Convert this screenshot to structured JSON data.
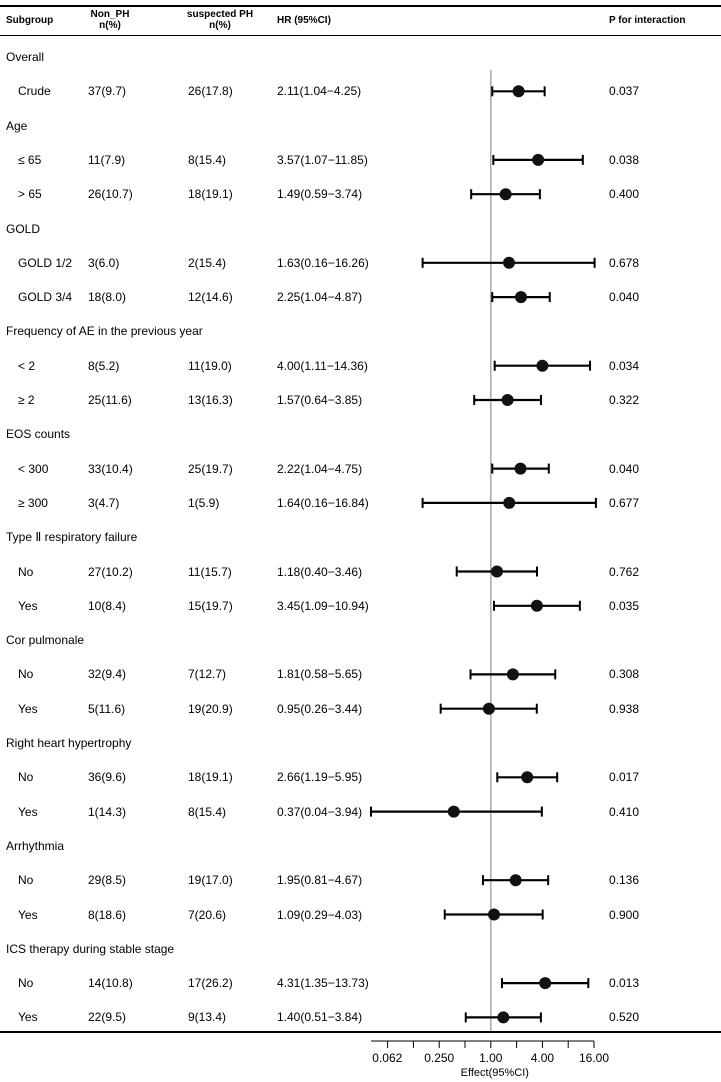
{
  "columns": {
    "subgroup": "Subgroup",
    "non_ph": [
      "Non_PH",
      "n(%)"
    ],
    "suspected_ph": [
      "suspected PH",
      "n(%)"
    ],
    "hr": "HR (95%CI)",
    "p": "P for interaction"
  },
  "chart_data": {
    "type": "forest",
    "x_scale": "log2",
    "xlabel": "Effect(95%CI)",
    "xlim": [
      0.04,
      16.0
    ],
    "xticks": [
      0.062,
      0.25,
      1.0,
      4.0,
      16.0
    ],
    "xtick_labels": [
      "0.062",
      "0.250",
      "1.00",
      "4.00",
      "16.00"
    ],
    "reference_line": 1.0,
    "rows": [
      {
        "label": "Overall",
        "header": true
      },
      {
        "label": "Crude",
        "non_ph": "37(9.7)",
        "sph": "26(17.8)",
        "hr_text": "2.11(1.04−4.25)",
        "hr": 2.11,
        "lo": 1.04,
        "hi": 4.25,
        "p": "0.037"
      },
      {
        "label": "Age",
        "header": true
      },
      {
        "label": "≤ 65",
        "non_ph": "11(7.9)",
        "sph": "8(15.4)",
        "hr_text": "3.57(1.07−11.85)",
        "hr": 3.57,
        "lo": 1.07,
        "hi": 11.85,
        "p": "0.038"
      },
      {
        "label": "> 65",
        "non_ph": "26(10.7)",
        "sph": "18(19.1)",
        "hr_text": "1.49(0.59−3.74)",
        "hr": 1.49,
        "lo": 0.59,
        "hi": 3.74,
        "p": "0.400"
      },
      {
        "label": "GOLD",
        "header": true
      },
      {
        "label": "GOLD 1/2",
        "non_ph": "3(6.0)",
        "sph": "2(15.4)",
        "hr_text": "1.63(0.16−16.26)",
        "hr": 1.63,
        "lo": 0.16,
        "hi": 16.26,
        "p": "0.678"
      },
      {
        "label": "GOLD 3/4",
        "non_ph": "18(8.0)",
        "sph": "12(14.6)",
        "hr_text": "2.25(1.04−4.87)",
        "hr": 2.25,
        "lo": 1.04,
        "hi": 4.87,
        "p": "0.040"
      },
      {
        "label": "Frequency of AE in the previous year",
        "header": true
      },
      {
        "label": "< 2",
        "non_ph": "8(5.2)",
        "sph": "11(19.0)",
        "hr_text": "4.00(1.11−14.36)",
        "hr": 4.0,
        "lo": 1.11,
        "hi": 14.36,
        "p": "0.034"
      },
      {
        "label": "≥ 2",
        "non_ph": "25(11.6)",
        "sph": "13(16.3)",
        "hr_text": "1.57(0.64−3.85)",
        "hr": 1.57,
        "lo": 0.64,
        "hi": 3.85,
        "p": "0.322"
      },
      {
        "label": "EOS counts",
        "header": true
      },
      {
        "label": "< 300",
        "non_ph": "33(10.4)",
        "sph": "25(19.7)",
        "hr_text": "2.22(1.04−4.75)",
        "hr": 2.22,
        "lo": 1.04,
        "hi": 4.75,
        "p": "0.040"
      },
      {
        "label": "≥ 300",
        "non_ph": "3(4.7)",
        "sph": "1(5.9)",
        "hr_text": "1.64(0.16−16.84)",
        "hr": 1.64,
        "lo": 0.16,
        "hi": 16.84,
        "p": "0.677"
      },
      {
        "label": "Type Ⅱ respiratory failure",
        "header": true
      },
      {
        "label": "No",
        "non_ph": "27(10.2)",
        "sph": "11(15.7)",
        "hr_text": "1.18(0.40−3.46)",
        "hr": 1.18,
        "lo": 0.4,
        "hi": 3.46,
        "p": "0.762"
      },
      {
        "label": "Yes",
        "non_ph": "10(8.4)",
        "sph": "15(19.7)",
        "hr_text": "3.45(1.09−10.94)",
        "hr": 3.45,
        "lo": 1.09,
        "hi": 10.94,
        "p": "0.035"
      },
      {
        "label": "Cor pulmonale",
        "header": true
      },
      {
        "label": "No",
        "non_ph": "32(9.4)",
        "sph": "7(12.7)",
        "hr_text": "1.81(0.58−5.65)",
        "hr": 1.81,
        "lo": 0.58,
        "hi": 5.65,
        "p": "0.308"
      },
      {
        "label": "Yes",
        "non_ph": "5(11.6)",
        "sph": "19(20.9)",
        "hr_text": "0.95(0.26−3.44)",
        "hr": 0.95,
        "lo": 0.26,
        "hi": 3.44,
        "p": "0.938"
      },
      {
        "label": "Right heart hypertrophy",
        "header": true
      },
      {
        "label": "No",
        "non_ph": "36(9.6)",
        "sph": "18(19.1)",
        "hr_text": "2.66(1.19−5.95)",
        "hr": 2.66,
        "lo": 1.19,
        "hi": 5.95,
        "p": "0.017"
      },
      {
        "label": "Yes",
        "non_ph": "1(14.3)",
        "sph": "8(15.4)",
        "hr_text": "0.37(0.04−3.94)",
        "hr": 0.37,
        "lo": 0.04,
        "hi": 3.94,
        "p": "0.410"
      },
      {
        "label": "Arrhythmia",
        "header": true
      },
      {
        "label": "No",
        "non_ph": "29(8.5)",
        "sph": "19(17.0)",
        "hr_text": "1.95(0.81−4.67)",
        "hr": 1.95,
        "lo": 0.81,
        "hi": 4.67,
        "p": "0.136"
      },
      {
        "label": "Yes",
        "non_ph": "8(18.6)",
        "sph": "7(20.6)",
        "hr_text": "1.09(0.29−4.03)",
        "hr": 1.09,
        "lo": 0.29,
        "hi": 4.03,
        "p": "0.900"
      },
      {
        "label": "ICS therapy during stable stage",
        "header": true
      },
      {
        "label": "No",
        "non_ph": "14(10.8)",
        "sph": "17(26.2)",
        "hr_text": "4.31(1.35−13.73)",
        "hr": 4.31,
        "lo": 1.35,
        "hi": 13.73,
        "p": "0.013"
      },
      {
        "label": "Yes",
        "non_ph": "22(9.5)",
        "sph": "9(13.4)",
        "hr_text": "1.40(0.51−3.84)",
        "hr": 1.4,
        "lo": 0.51,
        "hi": 3.84,
        "p": "0.520"
      }
    ]
  }
}
